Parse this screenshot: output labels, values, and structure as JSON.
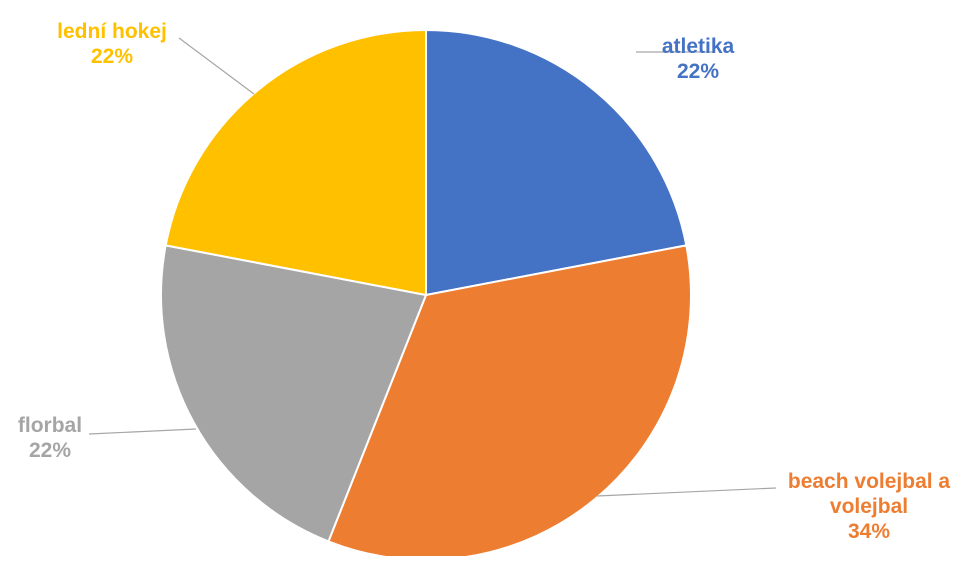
{
  "chart_data": {
    "type": "pie",
    "categories": [
      "atletika",
      "beach volejbal a volejbal",
      "florbal",
      "lední hokej"
    ],
    "values": [
      22,
      34,
      22,
      22
    ],
    "value_labels": [
      "22%",
      "34%",
      "22%",
      "22%"
    ],
    "label_lines": [
      [
        "atletika"
      ],
      [
        "beach volejbal a",
        "volejbal"
      ],
      [
        "florbal"
      ],
      [
        "lední hokej"
      ]
    ],
    "colors": [
      "#4472C4",
      "#ED7D31",
      "#A5A5A5",
      "#FFC000"
    ],
    "start_angle": "12 o'clock",
    "direction": "clockwise",
    "legend": "none",
    "labels": "outside with leader lines"
  }
}
